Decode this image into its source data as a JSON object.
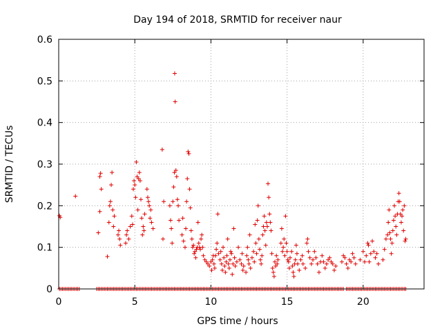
{
  "chart_data": {
    "type": "scatter",
    "title": "Day 194 of 2018, SRMTID for receiver naur",
    "xlabel": "GPS time / hours",
    "ylabel": "SRMTID / TECUs",
    "xlim": [
      0,
      24
    ],
    "ylim": [
      0,
      0.6
    ],
    "grid": true,
    "marker": "+",
    "color": "#e00000",
    "x_ticks": [
      {
        "value": 0,
        "label": "0"
      },
      {
        "value": 5,
        "label": "5"
      },
      {
        "value": 10,
        "label": "10"
      },
      {
        "value": 15,
        "label": "15"
      },
      {
        "value": 20,
        "label": "20"
      }
    ],
    "y_ticks": [
      {
        "value": 0,
        "label": "0"
      },
      {
        "value": 0.1,
        "label": "0.1"
      },
      {
        "value": 0.2,
        "label": "0.2"
      },
      {
        "value": 0.3,
        "label": "0.3"
      },
      {
        "value": 0.4,
        "label": "0.4"
      },
      {
        "value": 0.5,
        "label": "0.5"
      },
      {
        "value": 0.6,
        "label": "0.6"
      }
    ],
    "series": [
      {
        "name": "SRMTID",
        "points": [
          [
            0.05,
            0.176
          ],
          [
            0.1,
            0.172
          ],
          [
            1.1,
            0.223
          ],
          [
            2.6,
            0.135
          ],
          [
            2.7,
            0.186
          ],
          [
            2.75,
            0.278
          ],
          [
            2.8,
            0.24
          ],
          [
            2.7,
            0.27
          ],
          [
            3.2,
            0.078
          ],
          [
            3.3,
            0.16
          ],
          [
            3.35,
            0.2
          ],
          [
            3.4,
            0.21
          ],
          [
            3.45,
            0.25
          ],
          [
            3.5,
            0.28
          ],
          [
            3.55,
            0.19
          ],
          [
            3.6,
            0.15
          ],
          [
            3.65,
            0.175
          ],
          [
            3.9,
            0.13
          ],
          [
            3.95,
            0.14
          ],
          [
            4.0,
            0.12
          ],
          [
            4.05,
            0.105
          ],
          [
            4.4,
            0.11
          ],
          [
            4.45,
            0.13
          ],
          [
            4.5,
            0.14
          ],
          [
            4.6,
            0.12
          ],
          [
            4.7,
            0.15
          ],
          [
            4.8,
            0.175
          ],
          [
            4.85,
            0.155
          ],
          [
            4.9,
            0.24
          ],
          [
            4.95,
            0.26
          ],
          [
            5.0,
            0.25
          ],
          [
            5.05,
            0.22
          ],
          [
            5.1,
            0.305
          ],
          [
            5.15,
            0.27
          ],
          [
            5.2,
            0.19
          ],
          [
            5.25,
            0.265
          ],
          [
            5.3,
            0.28
          ],
          [
            5.35,
            0.26
          ],
          [
            5.4,
            0.215
          ],
          [
            5.45,
            0.17
          ],
          [
            5.5,
            0.13
          ],
          [
            5.55,
            0.15
          ],
          [
            5.6,
            0.14
          ],
          [
            5.65,
            0.18
          ],
          [
            5.8,
            0.24
          ],
          [
            5.85,
            0.22
          ],
          [
            5.9,
            0.21
          ],
          [
            5.95,
            0.2
          ],
          [
            6.0,
            0.17
          ],
          [
            6.05,
            0.19
          ],
          [
            6.1,
            0.16
          ],
          [
            6.2,
            0.145
          ],
          [
            6.8,
            0.335
          ],
          [
            6.85,
            0.12
          ],
          [
            6.9,
            0.21
          ],
          [
            7.3,
            0.2
          ],
          [
            7.35,
            0.165
          ],
          [
            7.4,
            0.145
          ],
          [
            7.45,
            0.11
          ],
          [
            7.5,
            0.21
          ],
          [
            7.55,
            0.245
          ],
          [
            7.6,
            0.28
          ],
          [
            7.62,
            0.518
          ],
          [
            7.65,
            0.45
          ],
          [
            7.7,
            0.285
          ],
          [
            7.75,
            0.27
          ],
          [
            7.8,
            0.215
          ],
          [
            7.85,
            0.2
          ],
          [
            7.9,
            0.165
          ],
          [
            8.1,
            0.13
          ],
          [
            8.15,
            0.17
          ],
          [
            8.2,
            0.115
          ],
          [
            8.3,
            0.1
          ],
          [
            8.35,
            0.145
          ],
          [
            8.4,
            0.21
          ],
          [
            8.45,
            0.265
          ],
          [
            8.5,
            0.33
          ],
          [
            8.55,
            0.325
          ],
          [
            8.6,
            0.24
          ],
          [
            8.65,
            0.195
          ],
          [
            8.7,
            0.14
          ],
          [
            8.75,
            0.12
          ],
          [
            8.8,
            0.1
          ],
          [
            8.85,
            0.105
          ],
          [
            8.9,
            0.085
          ],
          [
            8.95,
            0.09
          ],
          [
            9.0,
            0.075
          ],
          [
            9.05,
            0.095
          ],
          [
            9.1,
            0.1
          ],
          [
            9.15,
            0.16
          ],
          [
            9.2,
            0.11
          ],
          [
            9.25,
            0.1
          ],
          [
            9.3,
            0.095
          ],
          [
            9.35,
            0.12
          ],
          [
            9.4,
            0.13
          ],
          [
            9.45,
            0.1
          ],
          [
            9.5,
            0.08
          ],
          [
            9.6,
            0.07
          ],
          [
            9.7,
            0.065
          ],
          [
            9.8,
            0.06
          ],
          [
            9.9,
            0.055
          ],
          [
            10.0,
            0.065
          ],
          [
            10.05,
            0.045
          ],
          [
            10.1,
            0.07
          ],
          [
            10.15,
            0.08
          ],
          [
            10.2,
            0.06
          ],
          [
            10.25,
            0.05
          ],
          [
            10.3,
            0.08
          ],
          [
            10.35,
            0.095
          ],
          [
            10.4,
            0.11
          ],
          [
            10.45,
            0.18
          ],
          [
            10.5,
            0.085
          ],
          [
            10.6,
            0.07
          ],
          [
            10.65,
            0.09
          ],
          [
            10.7,
            0.06
          ],
          [
            10.75,
            0.045
          ],
          [
            10.8,
            0.1
          ],
          [
            10.85,
            0.075
          ],
          [
            10.9,
            0.055
          ],
          [
            10.95,
            0.04
          ],
          [
            11.0,
            0.065
          ],
          [
            11.05,
            0.08
          ],
          [
            11.1,
            0.12
          ],
          [
            11.15,
            0.06
          ],
          [
            11.2,
            0.05
          ],
          [
            11.25,
            0.07
          ],
          [
            11.3,
            0.09
          ],
          [
            11.35,
            0.085
          ],
          [
            11.4,
            0.035
          ],
          [
            11.45,
            0.06
          ],
          [
            11.5,
            0.145
          ],
          [
            11.55,
            0.075
          ],
          [
            11.6,
            0.055
          ],
          [
            11.7,
            0.065
          ],
          [
            11.8,
            0.1
          ],
          [
            11.9,
            0.07
          ],
          [
            12.0,
            0.06
          ],
          [
            12.05,
            0.085
          ],
          [
            12.1,
            0.045
          ],
          [
            12.15,
            0.055
          ],
          [
            12.3,
            0.04
          ],
          [
            12.35,
            0.08
          ],
          [
            12.4,
            0.1
          ],
          [
            12.45,
            0.07
          ],
          [
            12.5,
            0.06
          ],
          [
            12.55,
            0.13
          ],
          [
            12.6,
            0.05
          ],
          [
            12.7,
            0.075
          ],
          [
            12.8,
            0.09
          ],
          [
            12.85,
            0.065
          ],
          [
            12.9,
            0.155
          ],
          [
            12.95,
            0.11
          ],
          [
            13.0,
            0.085
          ],
          [
            13.05,
            0.165
          ],
          [
            13.1,
            0.2
          ],
          [
            13.15,
            0.12
          ],
          [
            13.2,
            0.095
          ],
          [
            13.25,
            0.07
          ],
          [
            13.3,
            0.06
          ],
          [
            13.35,
            0.08
          ],
          [
            13.4,
            0.13
          ],
          [
            13.45,
            0.15
          ],
          [
            13.5,
            0.175
          ],
          [
            13.55,
            0.14
          ],
          [
            13.6,
            0.105
          ],
          [
            13.65,
            0.16
          ],
          [
            13.7,
            0.15
          ],
          [
            13.75,
            0.253
          ],
          [
            13.8,
            0.22
          ],
          [
            13.85,
            0.18
          ],
          [
            13.9,
            0.16
          ],
          [
            13.95,
            0.14
          ],
          [
            14.0,
            0.085
          ],
          [
            14.05,
            0.05
          ],
          [
            14.1,
            0.04
          ],
          [
            14.15,
            0.03
          ],
          [
            14.2,
            0.065
          ],
          [
            14.25,
            0.055
          ],
          [
            14.3,
            0.08
          ],
          [
            14.35,
            0.06
          ],
          [
            14.4,
            0.07
          ],
          [
            14.6,
            0.11
          ],
          [
            14.65,
            0.145
          ],
          [
            14.7,
            0.09
          ],
          [
            14.75,
            0.1
          ],
          [
            14.8,
            0.12
          ],
          [
            14.85,
            0.08
          ],
          [
            14.9,
            0.175
          ],
          [
            14.95,
            0.11
          ],
          [
            15.0,
            0.09
          ],
          [
            15.05,
            0.07
          ],
          [
            15.1,
            0.065
          ],
          [
            15.15,
            0.05
          ],
          [
            15.2,
            0.075
          ],
          [
            15.3,
            0.09
          ],
          [
            15.35,
            0.055
          ],
          [
            15.4,
            0.04
          ],
          [
            15.45,
            0.03
          ],
          [
            15.5,
            0.06
          ],
          [
            15.55,
            0.07
          ],
          [
            15.6,
            0.105
          ],
          [
            15.65,
            0.085
          ],
          [
            15.7,
            0.06
          ],
          [
            15.8,
            0.045
          ],
          [
            15.9,
            0.07
          ],
          [
            16.0,
            0.08
          ],
          [
            16.05,
            0.06
          ],
          [
            16.2,
            0.05
          ],
          [
            16.3,
            0.11
          ],
          [
            16.35,
            0.12
          ],
          [
            16.4,
            0.09
          ],
          [
            16.5,
            0.075
          ],
          [
            16.6,
            0.06
          ],
          [
            16.7,
            0.07
          ],
          [
            16.8,
            0.09
          ],
          [
            16.9,
            0.075
          ],
          [
            17.0,
            0.06
          ],
          [
            17.1,
            0.04
          ],
          [
            17.2,
            0.065
          ],
          [
            17.3,
            0.08
          ],
          [
            17.4,
            0.065
          ],
          [
            17.5,
            0.05
          ],
          [
            17.6,
            0.06
          ],
          [
            17.7,
            0.07
          ],
          [
            17.8,
            0.075
          ],
          [
            17.9,
            0.065
          ],
          [
            18.0,
            0.06
          ],
          [
            18.1,
            0.045
          ],
          [
            18.2,
            0.055
          ],
          [
            18.6,
            0.065
          ],
          [
            18.7,
            0.08
          ],
          [
            18.8,
            0.075
          ],
          [
            18.9,
            0.06
          ],
          [
            19.0,
            0.05
          ],
          [
            19.1,
            0.07
          ],
          [
            19.2,
            0.065
          ],
          [
            19.3,
            0.085
          ],
          [
            19.4,
            0.075
          ],
          [
            19.5,
            0.06
          ],
          [
            19.8,
            0.07
          ],
          [
            20.0,
            0.09
          ],
          [
            20.1,
            0.065
          ],
          [
            20.2,
            0.08
          ],
          [
            20.3,
            0.11
          ],
          [
            20.35,
            0.105
          ],
          [
            20.4,
            0.065
          ],
          [
            20.5,
            0.085
          ],
          [
            20.6,
            0.115
          ],
          [
            20.7,
            0.09
          ],
          [
            20.8,
            0.075
          ],
          [
            20.9,
            0.085
          ],
          [
            21.0,
            0.06
          ],
          [
            21.3,
            0.07
          ],
          [
            21.4,
            0.095
          ],
          [
            21.5,
            0.12
          ],
          [
            21.6,
            0.13
          ],
          [
            21.65,
            0.16
          ],
          [
            21.7,
            0.19
          ],
          [
            21.75,
            0.135
          ],
          [
            21.8,
            0.12
          ],
          [
            21.85,
            0.085
          ],
          [
            21.9,
            0.11
          ],
          [
            21.95,
            0.14
          ],
          [
            22.0,
            0.165
          ],
          [
            22.05,
            0.2
          ],
          [
            22.1,
            0.175
          ],
          [
            22.15,
            0.15
          ],
          [
            22.2,
            0.13
          ],
          [
            22.25,
            0.18
          ],
          [
            22.3,
            0.21
          ],
          [
            22.35,
            0.23
          ],
          [
            22.4,
            0.21
          ],
          [
            22.45,
            0.18
          ],
          [
            22.5,
            0.16
          ],
          [
            22.55,
            0.175
          ],
          [
            22.6,
            0.19
          ],
          [
            22.65,
            0.14
          ],
          [
            22.7,
            0.2
          ],
          [
            22.75,
            0.115
          ],
          [
            22.8,
            0.12
          ]
        ]
      }
    ],
    "zero_runs": [
      [
        0.05,
        1.4
      ],
      [
        2.5,
        18.7
      ],
      [
        18.9,
        22.8
      ]
    ],
    "zero_step": 0.1
  }
}
